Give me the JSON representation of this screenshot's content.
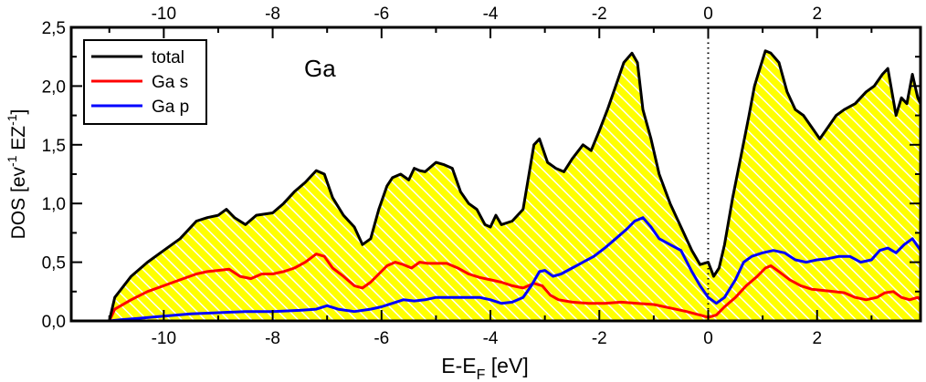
{
  "chart_data": {
    "type": "area",
    "title": "",
    "annotation": "Ga",
    "xlabel": "E-E",
    "xlabel_sub": "F",
    "xlabel_unit": " [eV]",
    "ylabel": "DOS [ev",
    "ylabel_sup1": "-1",
    "ylabel_mid": " EZ",
    "ylabel_sup2": "-1",
    "ylabel_end": "]",
    "xlim": [
      -11.7,
      3.9
    ],
    "ylim": [
      0.0,
      2.5
    ],
    "grid": false,
    "legend_position": "top-left",
    "fermi_line_x": 0,
    "x_ticks": [
      -10,
      -8,
      -6,
      -4,
      -2,
      0,
      2
    ],
    "x_tick_labels": [
      "-10",
      "-8",
      "-6",
      "-4",
      "-2",
      "0",
      "2"
    ],
    "y_ticks": [
      0.0,
      0.5,
      1.0,
      1.5,
      2.0,
      2.5
    ],
    "y_tick_labels": [
      "0,0",
      "0,5",
      "1,0",
      "1,5",
      "2,0",
      "2,5"
    ],
    "colors": {
      "total": "#000000",
      "s": "#ff0000",
      "p": "#0000ff",
      "fill": "#ffff00",
      "hatch": "#ffffff"
    },
    "series": [
      {
        "name": "total",
        "color": "#000000",
        "filled": true,
        "x": [
          -11.0,
          -10.9,
          -10.6,
          -10.3,
          -10.0,
          -9.7,
          -9.4,
          -9.2,
          -9.0,
          -8.85,
          -8.7,
          -8.5,
          -8.3,
          -8.0,
          -7.8,
          -7.6,
          -7.4,
          -7.2,
          -7.05,
          -6.9,
          -6.7,
          -6.5,
          -6.35,
          -6.2,
          -6.05,
          -5.9,
          -5.8,
          -5.65,
          -5.5,
          -5.4,
          -5.3,
          -5.2,
          -5.0,
          -4.85,
          -4.7,
          -4.55,
          -4.4,
          -4.25,
          -4.1,
          -4.0,
          -3.9,
          -3.8,
          -3.6,
          -3.4,
          -3.2,
          -3.1,
          -2.95,
          -2.8,
          -2.65,
          -2.5,
          -2.3,
          -2.15,
          -2.0,
          -1.85,
          -1.7,
          -1.55,
          -1.4,
          -1.3,
          -1.2,
          -1.05,
          -0.9,
          -0.7,
          -0.5,
          -0.3,
          -0.15,
          0.0,
          0.1,
          0.2,
          0.3,
          0.45,
          0.6,
          0.75,
          0.85,
          0.95,
          1.05,
          1.15,
          1.3,
          1.45,
          1.6,
          1.75,
          1.9,
          2.05,
          2.2,
          2.35,
          2.5,
          2.7,
          2.9,
          3.05,
          3.2,
          3.3,
          3.45,
          3.55,
          3.65,
          3.75,
          3.85,
          3.9
        ],
        "y": [
          0.0,
          0.2,
          0.38,
          0.5,
          0.6,
          0.7,
          0.85,
          0.88,
          0.9,
          0.95,
          0.88,
          0.82,
          0.9,
          0.92,
          1.0,
          1.1,
          1.18,
          1.28,
          1.25,
          1.05,
          0.9,
          0.8,
          0.65,
          0.7,
          0.95,
          1.15,
          1.22,
          1.25,
          1.2,
          1.3,
          1.28,
          1.27,
          1.35,
          1.33,
          1.3,
          1.1,
          1.0,
          0.95,
          0.82,
          0.8,
          0.9,
          0.82,
          0.85,
          0.95,
          1.5,
          1.55,
          1.35,
          1.3,
          1.27,
          1.38,
          1.5,
          1.45,
          1.62,
          1.8,
          2.0,
          2.2,
          2.28,
          2.2,
          1.8,
          1.55,
          1.25,
          1.0,
          0.8,
          0.6,
          0.48,
          0.5,
          0.38,
          0.45,
          0.65,
          1.05,
          1.4,
          1.75,
          2.0,
          2.15,
          2.3,
          2.28,
          2.2,
          1.95,
          1.8,
          1.75,
          1.65,
          1.55,
          1.65,
          1.75,
          1.8,
          1.85,
          1.95,
          2.0,
          2.1,
          2.15,
          1.75,
          1.9,
          1.85,
          2.1,
          1.9,
          1.85
        ]
      },
      {
        "name": "Ga s",
        "color": "#ff0000",
        "filled": false,
        "x": [
          -11.0,
          -10.9,
          -10.6,
          -10.3,
          -10.0,
          -9.7,
          -9.4,
          -9.2,
          -9.0,
          -8.8,
          -8.6,
          -8.4,
          -8.2,
          -8.0,
          -7.8,
          -7.6,
          -7.4,
          -7.2,
          -7.05,
          -6.9,
          -6.7,
          -6.5,
          -6.35,
          -6.2,
          -6.05,
          -5.9,
          -5.75,
          -5.6,
          -5.45,
          -5.3,
          -5.15,
          -5.0,
          -4.8,
          -4.6,
          -4.4,
          -4.2,
          -4.0,
          -3.8,
          -3.6,
          -3.4,
          -3.2,
          -3.05,
          -2.9,
          -2.75,
          -2.5,
          -2.2,
          -1.9,
          -1.6,
          -1.3,
          -1.0,
          -0.7,
          -0.4,
          -0.15,
          0.0,
          0.15,
          0.3,
          0.5,
          0.7,
          0.9,
          1.05,
          1.15,
          1.3,
          1.5,
          1.7,
          1.9,
          2.1,
          2.3,
          2.5,
          2.7,
          2.9,
          3.1,
          3.25,
          3.4,
          3.55,
          3.7,
          3.85,
          3.9
        ],
        "y": [
          0.0,
          0.1,
          0.18,
          0.25,
          0.3,
          0.35,
          0.4,
          0.42,
          0.43,
          0.44,
          0.38,
          0.36,
          0.4,
          0.4,
          0.42,
          0.45,
          0.5,
          0.57,
          0.55,
          0.45,
          0.38,
          0.3,
          0.28,
          0.33,
          0.4,
          0.47,
          0.5,
          0.48,
          0.45,
          0.5,
          0.49,
          0.49,
          0.49,
          0.45,
          0.4,
          0.37,
          0.35,
          0.33,
          0.3,
          0.28,
          0.32,
          0.3,
          0.22,
          0.18,
          0.16,
          0.15,
          0.15,
          0.16,
          0.15,
          0.14,
          0.11,
          0.08,
          0.05,
          0.03,
          0.05,
          0.12,
          0.2,
          0.3,
          0.38,
          0.45,
          0.47,
          0.42,
          0.35,
          0.3,
          0.27,
          0.26,
          0.25,
          0.24,
          0.2,
          0.18,
          0.2,
          0.24,
          0.25,
          0.2,
          0.18,
          0.2,
          0.18
        ]
      },
      {
        "name": "Ga p",
        "color": "#0000ff",
        "filled": false,
        "x": [
          -11.0,
          -10.8,
          -10.5,
          -10.0,
          -9.5,
          -9.0,
          -8.5,
          -8.0,
          -7.5,
          -7.2,
          -7.0,
          -6.8,
          -6.5,
          -6.2,
          -6.0,
          -5.8,
          -5.6,
          -5.4,
          -5.2,
          -5.0,
          -4.8,
          -4.5,
          -4.2,
          -4.0,
          -3.8,
          -3.6,
          -3.4,
          -3.25,
          -3.1,
          -3.0,
          -2.85,
          -2.7,
          -2.5,
          -2.3,
          -2.1,
          -1.9,
          -1.7,
          -1.5,
          -1.35,
          -1.2,
          -1.05,
          -0.9,
          -0.7,
          -0.5,
          -0.3,
          -0.15,
          0.0,
          0.15,
          0.3,
          0.5,
          0.65,
          0.8,
          1.0,
          1.2,
          1.4,
          1.6,
          1.8,
          2.0,
          2.2,
          2.4,
          2.6,
          2.8,
          3.0,
          3.15,
          3.3,
          3.45,
          3.6,
          3.75,
          3.9
        ],
        "y": [
          0.0,
          0.01,
          0.02,
          0.04,
          0.06,
          0.07,
          0.08,
          0.08,
          0.09,
          0.1,
          0.13,
          0.1,
          0.08,
          0.1,
          0.12,
          0.15,
          0.18,
          0.17,
          0.18,
          0.2,
          0.2,
          0.2,
          0.2,
          0.18,
          0.15,
          0.16,
          0.2,
          0.3,
          0.42,
          0.43,
          0.38,
          0.4,
          0.45,
          0.5,
          0.55,
          0.62,
          0.7,
          0.78,
          0.85,
          0.88,
          0.8,
          0.7,
          0.65,
          0.6,
          0.42,
          0.3,
          0.2,
          0.15,
          0.2,
          0.35,
          0.5,
          0.55,
          0.58,
          0.6,
          0.58,
          0.52,
          0.5,
          0.52,
          0.53,
          0.55,
          0.55,
          0.5,
          0.52,
          0.6,
          0.62,
          0.58,
          0.65,
          0.7,
          0.6
        ]
      }
    ]
  }
}
